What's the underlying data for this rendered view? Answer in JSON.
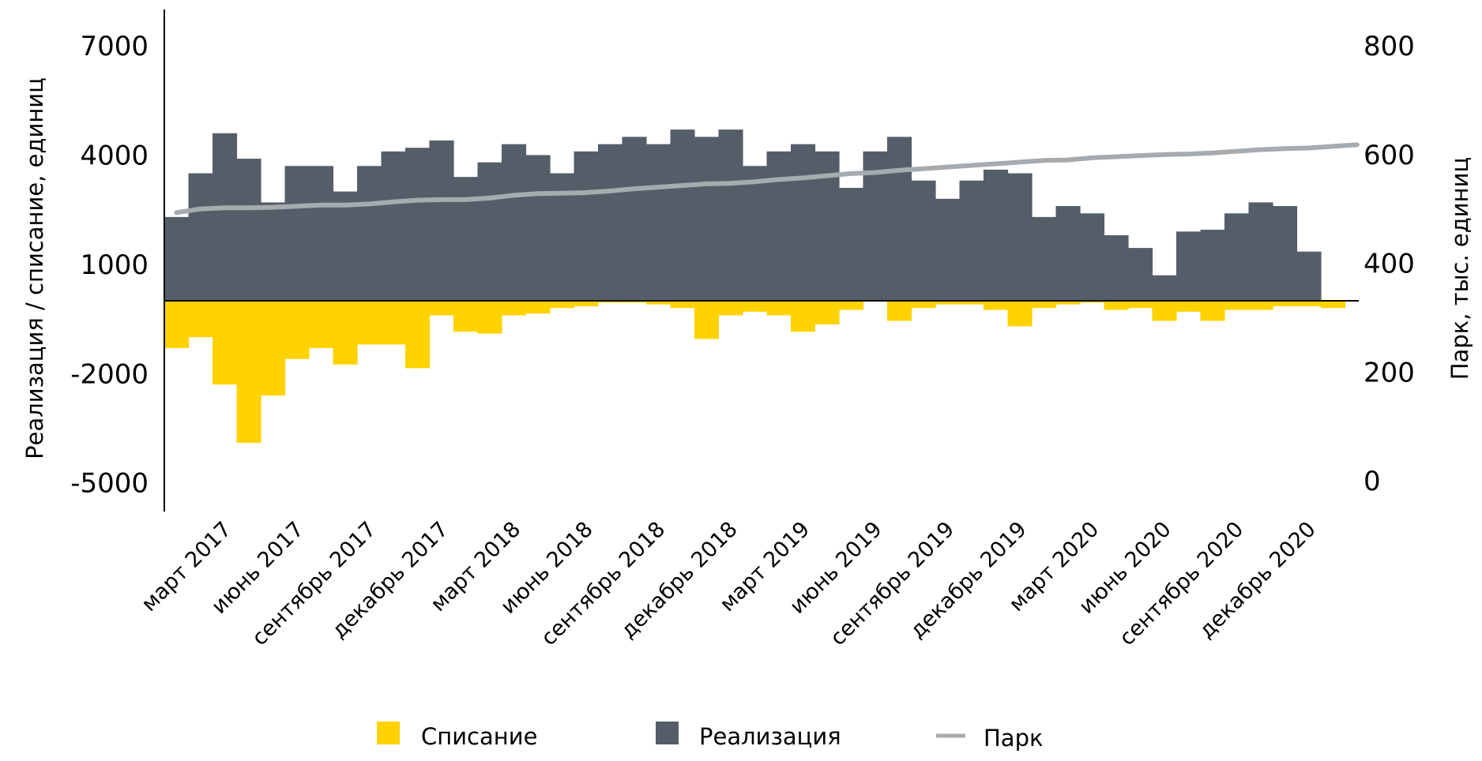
{
  "chart_data": {
    "type": "bar",
    "x": [
      "январь 2017",
      "февраль 2017",
      "март 2017",
      "апрель 2017",
      "май 2017",
      "июнь 2017",
      "июль 2017",
      "август 2017",
      "сентябрь 2017",
      "октябрь 2017",
      "ноябрь 2017",
      "декабрь 2017",
      "январь 2018",
      "февраль 2018",
      "март 2018",
      "апрель 2018",
      "май 2018",
      "июнь 2018",
      "июль 2018",
      "август 2018",
      "сентябрь 2018",
      "октябрь 2018",
      "ноябрь 2018",
      "декабрь 2018",
      "январь 2019",
      "февраль 2019",
      "март 2019",
      "апрель 2019",
      "май 2019",
      "июнь 2019",
      "июль 2019",
      "август 2019",
      "сентябрь 2019",
      "октябрь 2019",
      "ноябрь 2019",
      "декабрь 2019",
      "январь 2020",
      "февраль 2020",
      "март 2020",
      "апрель 2020",
      "май 2020",
      "июнь 2020",
      "июль 2020",
      "август 2020",
      "сентябрь 2020",
      "октябрь 2020",
      "ноябрь 2020",
      "декабрь 2020",
      "январь 2021",
      "февраль 2021"
    ],
    "x_tick_labels": [
      "март 2017",
      "июнь 2017",
      "сентябрь 2017",
      "декабрь 2017",
      "март 2018",
      "июнь 2018",
      "сентябрь 2018",
      "декабрь 2018",
      "март 2019",
      "июнь 2019",
      "сентябрь 2019",
      "декабрь 2019",
      "март 2020",
      "июнь 2020",
      "сентябрь 2020",
      "декабрь 2020"
    ],
    "y_left": {
      "label": "Реализация / списание, единиц",
      "ticks": [
        7000,
        4000,
        1000,
        -2000,
        -5000
      ],
      "range": [
        -5800,
        8000
      ]
    },
    "y_right": {
      "label": "Парк, тыс. единиц",
      "ticks": [
        800,
        600,
        400,
        200,
        0
      ],
      "range": [
        -40,
        840
      ]
    },
    "series": [
      {
        "name": "Реализация",
        "type": "bar",
        "axis": "left",
        "color": "#555e68",
        "values": [
          2300,
          3500,
          4600,
          3900,
          2700,
          3700,
          3700,
          3000,
          3700,
          4100,
          4200,
          4400,
          3400,
          3800,
          4300,
          4000,
          3500,
          4100,
          4300,
          4500,
          4300,
          4700,
          4500,
          4700,
          3700,
          4100,
          4300,
          4100,
          3100,
          4100,
          4500,
          3300,
          2800,
          3300,
          3600,
          3500,
          2300,
          2600,
          2400,
          1800,
          1450,
          700,
          1900,
          1950,
          2400,
          2700,
          2600,
          1350,
          null,
          null
        ]
      },
      {
        "name": "Списание",
        "type": "bar",
        "axis": "left",
        "color": "#ffd200",
        "values": [
          -1300,
          -1000,
          -2300,
          -3900,
          -2600,
          -1600,
          -1300,
          -1750,
          -1200,
          -1200,
          -1850,
          -400,
          -850,
          -900,
          -400,
          -350,
          -200,
          -150,
          -50,
          -50,
          -100,
          -200,
          -1050,
          -400,
          -300,
          -400,
          -850,
          -650,
          -250,
          0,
          -550,
          -200,
          -100,
          -100,
          -250,
          -700,
          -200,
          -100,
          -50,
          -250,
          -200,
          -550,
          -300,
          -550,
          -250,
          -250,
          -150,
          -150,
          -200,
          null
        ]
      },
      {
        "name": "Парк",
        "type": "line",
        "axis": "right",
        "color": "#a6abb0",
        "values": [
          493,
          500,
          502,
          502,
          503,
          505,
          507,
          507,
          509,
          513,
          516,
          517,
          517,
          520,
          525,
          528,
          529,
          530,
          533,
          537,
          540,
          543,
          546,
          547,
          550,
          554,
          557,
          561,
          565,
          567,
          571,
          574,
          577,
          580,
          583,
          586,
          589,
          590,
          594,
          596,
          598,
          600,
          601,
          603,
          606,
          609,
          611,
          612,
          615,
          618
        ]
      }
    ],
    "legend": {
      "items": [
        "Списание",
        "Реализация",
        "Парк"
      ],
      "position": "bottom"
    },
    "grid": false
  }
}
